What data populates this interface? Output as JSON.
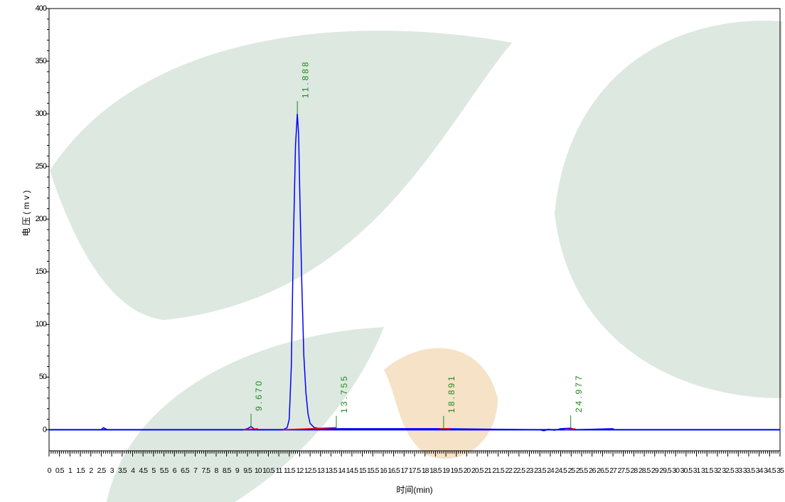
{
  "chart_data": {
    "type": "line",
    "xlabel": "时间(min)",
    "ylabel": "电 压 ( m v )",
    "xlim": [
      0,
      35
    ],
    "ylim": [
      -20,
      400
    ],
    "xticks": [
      0,
      0.5,
      1,
      1.5,
      2,
      2.5,
      3,
      3.5,
      4,
      4.5,
      5,
      5.5,
      6,
      6.5,
      7,
      7.5,
      8,
      8.5,
      9,
      9.5,
      10,
      10.5,
      11,
      11.5,
      12,
      12.5,
      13,
      13.5,
      14,
      14.5,
      15,
      15.5,
      16,
      16.5,
      17,
      17.5,
      18,
      18.5,
      19,
      19.5,
      20,
      20.5,
      21,
      21.5,
      22,
      22.5,
      23,
      23.5,
      24,
      24.5,
      25,
      25.5,
      26,
      26.5,
      27,
      27.5,
      28,
      28.5,
      29,
      29.5,
      30,
      30.5,
      31,
      31.5,
      32,
      32.5,
      33,
      33.5,
      34,
      34.5,
      35
    ],
    "yticks": [
      0,
      50,
      100,
      150,
      200,
      250,
      300,
      350,
      400
    ],
    "series": [
      {
        "color": "#0000ff",
        "x": [
          0,
          2.5,
          2.6,
          2.7,
          2.8,
          9.3,
          9.5,
          9.67,
          9.8,
          10.0,
          11.2,
          11.4,
          11.5,
          11.6,
          11.7,
          11.8,
          11.888,
          11.95,
          12.0,
          12.1,
          12.2,
          12.3,
          12.4,
          12.5,
          12.7,
          13.0,
          13.755,
          18.891,
          23.5,
          23.7,
          23.9,
          24.2,
          24.5,
          24.977,
          25.2,
          27.0,
          27.05,
          35
        ],
        "values": [
          0,
          0,
          2,
          1,
          0,
          0,
          1,
          3,
          1,
          0,
          0,
          2,
          10,
          60,
          180,
          270,
          300,
          280,
          230,
          140,
          70,
          35,
          15,
          6,
          2,
          1,
          1,
          1,
          0,
          -1,
          0.5,
          -0.5,
          1,
          1.5,
          0,
          1,
          0,
          0
        ]
      },
      {
        "color": "#ff0000",
        "x": [
          9.3,
          10.0,
          null,
          11.2,
          13.755,
          null,
          18.7,
          19.2,
          null,
          24.7,
          25.2
        ],
        "values": [
          0,
          1,
          null,
          0,
          2,
          null,
          1,
          1,
          null,
          0,
          1
        ]
      }
    ],
    "annotations": [
      {
        "x": 9.67,
        "y": 3,
        "label": "9.670"
      },
      {
        "x": 11.888,
        "y": 300,
        "label": "11.888"
      },
      {
        "x": 13.755,
        "y": 1,
        "label": "13.755"
      },
      {
        "x": 18.891,
        "y": 1,
        "label": "18.891"
      },
      {
        "x": 24.977,
        "y": 1.5,
        "label": "24.977"
      }
    ]
  }
}
